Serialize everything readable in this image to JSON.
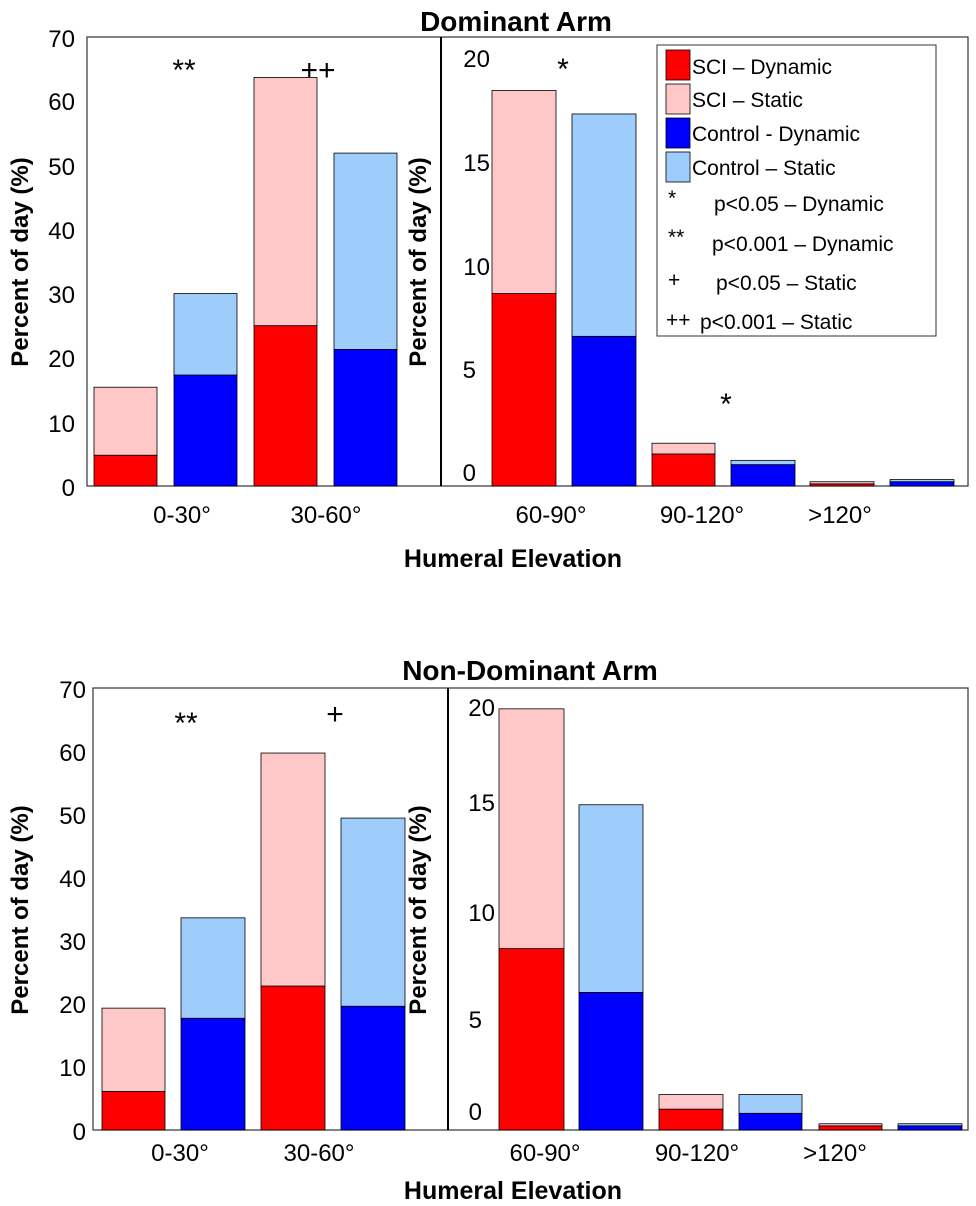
{
  "colors": {
    "sci_dynamic": "#ff0000",
    "sci_static": "#ffc8c8",
    "control_dynamic": "#0000ff",
    "control_static": "#9fcdfb"
  },
  "legend": [
    {
      "kind": "swatch",
      "color": "#ff0000",
      "label": "SCI – Dynamic"
    },
    {
      "kind": "swatch",
      "color": "#ffc8c8",
      "label": "SCI – Static"
    },
    {
      "kind": "swatch",
      "color": "#0000ff",
      "label": "Control - Dynamic"
    },
    {
      "kind": "swatch",
      "color": "#9fcdfb",
      "label": "Control – Static"
    },
    {
      "kind": "marker",
      "marker": "*",
      "label": "p<0.05 – Dynamic"
    },
    {
      "kind": "marker",
      "marker": "**",
      "label": "p<0.001 – Dynamic"
    },
    {
      "kind": "marker",
      "marker": "+",
      "label": "p<0.05 – Static"
    },
    {
      "kind": "marker",
      "marker": "++",
      "label": "p<0.001 – Static"
    }
  ],
  "chart_data": [
    {
      "type": "bar",
      "stacked": true,
      "title": "Dominant Arm",
      "xlabel": "Humeral Elevation",
      "ylabel": "Percent of day (%)",
      "series": [
        "SCI – Dynamic",
        "SCI – Static",
        "Control - Dynamic",
        "Control – Static"
      ],
      "panels": [
        {
          "ylim": [
            0,
            70
          ],
          "yticks": [
            0,
            10,
            20,
            30,
            40,
            50,
            60,
            70
          ],
          "categories": [
            "0-30°",
            "30-60°"
          ],
          "groups": [
            {
              "category": "0-30°",
              "sci_dynamic": 4.8,
              "sci_static": 10.6,
              "control_dynamic": 17.3,
              "control_static": 12.7,
              "annotation": "**"
            },
            {
              "category": "30-60°",
              "sci_dynamic": 25.0,
              "sci_static": 38.7,
              "control_dynamic": 21.3,
              "control_static": 30.6,
              "annotation": "++"
            }
          ]
        },
        {
          "ylim": [
            -0.7,
            20.3
          ],
          "yticks": [
            0,
            5,
            10,
            15,
            20
          ],
          "categories": [
            "60-90°",
            "90-120°",
            ">120°"
          ],
          "groups": [
            {
              "category": "60-90°",
              "sci_dynamic": 8.3,
              "sci_static": 9.5,
              "control_dynamic": 6.3,
              "control_static": 10.4,
              "annotation": "*"
            },
            {
              "category": "90-120°",
              "sci_dynamic": 0.8,
              "sci_static": 0.5,
              "control_dynamic": 0.3,
              "control_static": 0.2,
              "annotation": "*"
            },
            {
              "category": ">120°",
              "sci_dynamic": -0.6,
              "sci_static": 0.1,
              "control_dynamic": -0.5,
              "control_static": 0.1,
              "annotation": ""
            }
          ]
        }
      ]
    },
    {
      "type": "bar",
      "stacked": true,
      "title": "Non-Dominant Arm",
      "xlabel": "Humeral Elevation",
      "ylabel": "Percent of day (%)",
      "series": [
        "SCI – Dynamic",
        "SCI – Static",
        "Control - Dynamic",
        "Control – Static"
      ],
      "panels": [
        {
          "ylim": [
            0,
            70
          ],
          "yticks": [
            0,
            10,
            20,
            30,
            40,
            50,
            60,
            70
          ],
          "categories": [
            "0-30°",
            "30-60°"
          ],
          "groups": [
            {
              "category": "0-30°",
              "sci_dynamic": 6.1,
              "sci_static": 13.2,
              "control_dynamic": 17.7,
              "control_static": 15.9,
              "annotation": "**"
            },
            {
              "category": "30-60°",
              "sci_dynamic": 22.8,
              "sci_static": 36.9,
              "control_dynamic": 19.6,
              "control_static": 29.8,
              "annotation": "+"
            }
          ]
        },
        {
          "ylim": [
            -0.9,
            20.3
          ],
          "yticks": [
            0,
            5,
            10,
            15,
            20
          ],
          "categories": [
            "60-90°",
            "90-120°",
            ">120°"
          ],
          "groups": [
            {
              "category": "60-90°",
              "sci_dynamic": 7.8,
              "sci_static": 11.5,
              "control_dynamic": 5.7,
              "control_static": 9.0,
              "annotation": ""
            },
            {
              "category": "90-120°",
              "sci_dynamic": 0.1,
              "sci_static": 0.7,
              "control_dynamic": -0.1,
              "control_static": 0.9,
              "annotation": ""
            },
            {
              "category": ">120°",
              "sci_dynamic": -0.7,
              "sci_static": 0.1,
              "control_dynamic": -0.7,
              "control_static": 0.1,
              "annotation": ""
            }
          ]
        }
      ]
    }
  ]
}
